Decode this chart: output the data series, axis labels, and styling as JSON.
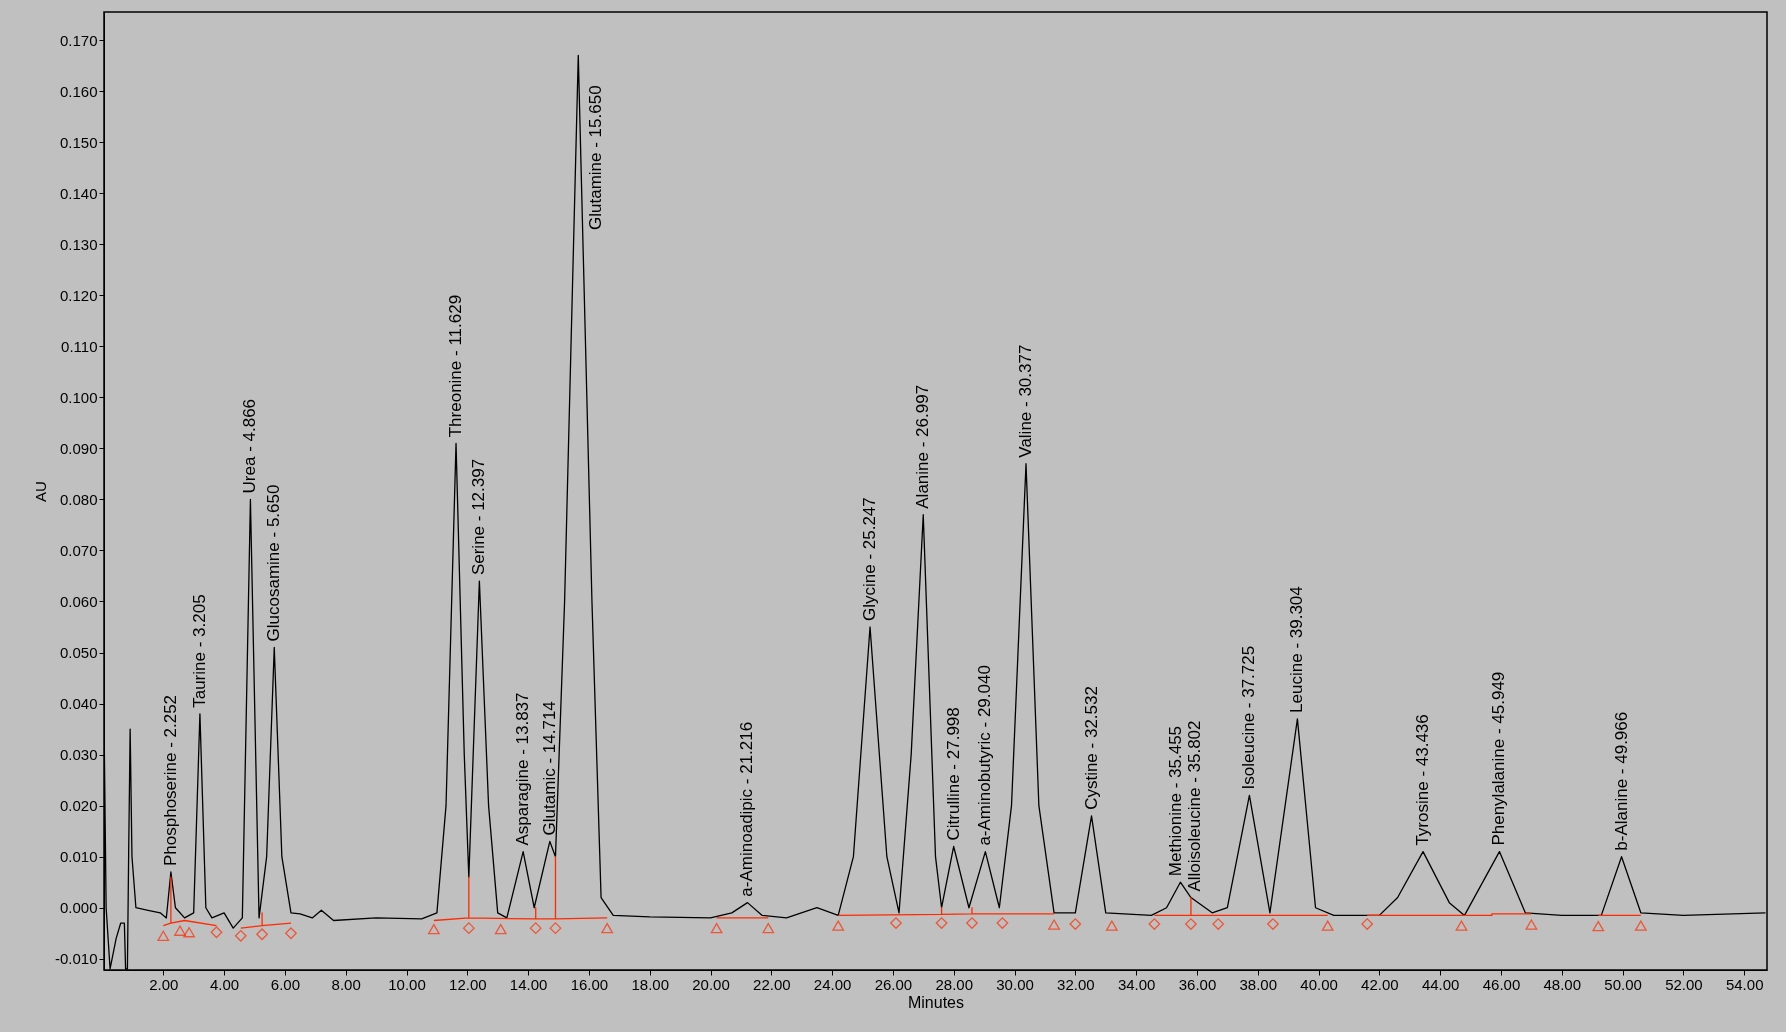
{
  "chart_data": {
    "type": "line",
    "xlabel": "Minutes",
    "ylabel": "AU",
    "xlim": [
      0.05,
      54.75
    ],
    "ylim": [
      -0.0122,
      0.1755
    ],
    "grid": false,
    "xticks": [
      {
        "value": 2,
        "label": "2.00"
      },
      {
        "value": 4,
        "label": "4.00"
      },
      {
        "value": 6,
        "label": "6.00"
      },
      {
        "value": 8,
        "label": "8.00"
      },
      {
        "value": 10,
        "label": "10.00"
      },
      {
        "value": 12,
        "label": "12.00"
      },
      {
        "value": 14,
        "label": "14.00"
      },
      {
        "value": 16,
        "label": "16.00"
      },
      {
        "value": 18,
        "label": "18.00"
      },
      {
        "value": 20,
        "label": "20.00"
      },
      {
        "value": 22,
        "label": "22.00"
      },
      {
        "value": 24,
        "label": "24.00"
      },
      {
        "value": 26,
        "label": "26.00"
      },
      {
        "value": 28,
        "label": "28.00"
      },
      {
        "value": 30,
        "label": "30.00"
      },
      {
        "value": 32,
        "label": "32.00"
      },
      {
        "value": 34,
        "label": "34.00"
      },
      {
        "value": 36,
        "label": "36.00"
      },
      {
        "value": 38,
        "label": "38.00"
      },
      {
        "value": 40,
        "label": "40.00"
      },
      {
        "value": 42,
        "label": "42.00"
      },
      {
        "value": 44,
        "label": "44.00"
      },
      {
        "value": 46,
        "label": "46.00"
      },
      {
        "value": 48,
        "label": "48.00"
      },
      {
        "value": 50,
        "label": "50.00"
      },
      {
        "value": 52,
        "label": "52.00"
      },
      {
        "value": 54,
        "label": "54.00"
      }
    ],
    "yticks": [
      {
        "value": -0.01,
        "label": "-0.010"
      },
      {
        "value": 0,
        "label": "0.000"
      },
      {
        "value": 0.01,
        "label": "0.010"
      },
      {
        "value": 0.02,
        "label": "0.020"
      },
      {
        "value": 0.03,
        "label": "0.030"
      },
      {
        "value": 0.04,
        "label": "0.040"
      },
      {
        "value": 0.05,
        "label": "0.050"
      },
      {
        "value": 0.06,
        "label": "0.060"
      },
      {
        "value": 0.07,
        "label": "0.070"
      },
      {
        "value": 0.08,
        "label": "0.080"
      },
      {
        "value": 0.09,
        "label": "0.090"
      },
      {
        "value": 0.1,
        "label": "0.100"
      },
      {
        "value": 0.11,
        "label": "0.110"
      },
      {
        "value": 0.12,
        "label": "0.120"
      },
      {
        "value": 0.13,
        "label": "0.130"
      },
      {
        "value": 0.14,
        "label": "0.140"
      },
      {
        "value": 0.15,
        "label": "0.150"
      },
      {
        "value": 0.16,
        "label": "0.160"
      },
      {
        "value": 0.17,
        "label": "0.170"
      }
    ],
    "series": [
      {
        "color": "#000000",
        "x": [
          0.05,
          0.12,
          0.25,
          0.45,
          0.6,
          0.72,
          0.76,
          0.82,
          0.86,
          0.91,
          0.97,
          1.1,
          1.5,
          1.9,
          2.1,
          2.25,
          2.4,
          2.7,
          3.0,
          3.205,
          3.4,
          3.6,
          4.0,
          4.3,
          4.6,
          4.866,
          5.15,
          5.4,
          5.65,
          5.9,
          6.2,
          6.5,
          6.9,
          7.2,
          7.6,
          9.0,
          10.5,
          11.0,
          11.3,
          11.629,
          11.9,
          12.05,
          12.397,
          12.7,
          13.0,
          13.3,
          13.837,
          14.2,
          14.714,
          14.9,
          15.2,
          15.65,
          16.1,
          16.4,
          16.8,
          18.0,
          20.0,
          20.7,
          21.216,
          21.7,
          22.5,
          23.5,
          24.2,
          24.7,
          25.247,
          25.8,
          26.2,
          26.6,
          26.997,
          27.4,
          27.6,
          27.998,
          28.5,
          29.04,
          29.5,
          29.9,
          30.377,
          30.8,
          31.3,
          32.0,
          32.532,
          33.0,
          34.5,
          35.0,
          35.455,
          35.802,
          36.5,
          37.0,
          37.725,
          38.4,
          39.304,
          39.9,
          40.5,
          42.0,
          42.6,
          43.436,
          44.3,
          44.8,
          45.949,
          46.8,
          48.0,
          49.3,
          49.966,
          50.6,
          52.0,
          54.7
        ],
        "values": [
          0.037,
          0.0,
          -0.012,
          -0.006,
          -0.003,
          -0.003,
          -0.012,
          -0.012,
          0.01,
          0.035,
          0.01,
          0.0,
          -0.0005,
          -0.001,
          -0.002,
          0.007,
          0.0,
          -0.002,
          -0.001,
          0.038,
          0.0,
          -0.002,
          -0.001,
          -0.004,
          -0.002,
          0.08,
          -0.002,
          0.01,
          0.051,
          0.01,
          -0.001,
          -0.0012,
          -0.002,
          -0.0005,
          -0.0025,
          -0.002,
          -0.0022,
          -0.001,
          0.02,
          0.091,
          0.03,
          0.006,
          0.064,
          0.02,
          -0.001,
          -0.002,
          0.011,
          0.0,
          0.013,
          0.01,
          0.06,
          0.167,
          0.06,
          0.002,
          -0.0015,
          -0.0018,
          -0.002,
          -0.001,
          0.001,
          -0.0015,
          -0.002,
          0.0,
          -0.0015,
          0.01,
          0.055,
          0.01,
          -0.001,
          0.03,
          0.077,
          0.01,
          0.0,
          0.012,
          0.0,
          0.011,
          0.0,
          0.02,
          0.087,
          0.02,
          -0.001,
          -0.001,
          0.018,
          -0.001,
          -0.0015,
          0.0,
          0.005,
          0.002,
          -0.001,
          0.0,
          0.022,
          -0.001,
          0.037,
          0.0,
          -0.0015,
          -0.0015,
          0.002,
          0.011,
          0.001,
          -0.0015,
          0.011,
          -0.001,
          -0.0015,
          -0.0015,
          0.01,
          -0.001,
          -0.0015,
          -0.001
        ]
      },
      {
        "type": "line",
        "color": "#ff2a00",
        "x": [
          2.0,
          2.25,
          2.25,
          2.25,
          2.7,
          3.75,
          3.9,
          4.55,
          5.25,
          5.25,
          5.25,
          6.2,
          6.3,
          10.9,
          12.05,
          12.05,
          12.05,
          14.25,
          14.25,
          14.25,
          14.9,
          14.9,
          14.9,
          16.6,
          16.7,
          20.2,
          21.9,
          22.0,
          24.2,
          27.6,
          27.6,
          27.6,
          28.6,
          28.6,
          28.6,
          31.3,
          31.4,
          34.6,
          35.802,
          35.802,
          35.802,
          40.3,
          40.4,
          41.6,
          45.7,
          45.7,
          47.0,
          47.1,
          49.2,
          50.6
        ],
        "values": [
          -0.0035,
          -0.003,
          0.006,
          -0.003,
          -0.0025,
          -0.0035,
          null,
          -0.004,
          -0.0035,
          -0.001,
          -0.0035,
          -0.003,
          null,
          -0.0025,
          -0.002,
          0.006,
          -0.002,
          -0.0022,
          0.0,
          -0.0022,
          -0.0022,
          0.01,
          -0.0022,
          -0.002,
          null,
          -0.002,
          -0.002,
          null,
          -0.0015,
          -0.0013,
          0.0,
          -0.0013,
          -0.0012,
          0.0,
          -0.0012,
          -0.0012,
          null,
          -0.0015,
          -0.0015,
          0.002,
          -0.0015,
          -0.0015,
          null,
          -0.0015,
          -0.0015,
          -0.0012,
          -0.0012,
          null,
          -0.0015,
          -0.0015
        ]
      },
      {
        "type": "scatter",
        "marker": "triangle",
        "color": "#ff2a00",
        "x": [
          2.0,
          2.55,
          2.85,
          10.9,
          13.1,
          16.6,
          20.2,
          21.9,
          24.2,
          31.3,
          33.2,
          40.3,
          44.7,
          47.0,
          49.2,
          50.6
        ],
        "values": [
          -0.0055,
          -0.0045,
          -0.0048,
          -0.0042,
          -0.0042,
          -0.004,
          -0.004,
          -0.004,
          -0.0035,
          -0.0033,
          -0.0035,
          -0.0035,
          -0.0035,
          -0.0033,
          -0.0036,
          -0.0035
        ]
      },
      {
        "type": "scatter",
        "marker": "diamond",
        "color": "#ff2a00",
        "x": [
          3.75,
          4.55,
          5.25,
          6.2,
          12.05,
          14.25,
          14.9,
          26.1,
          27.6,
          28.6,
          29.6,
          32.0,
          34.6,
          35.802,
          36.7,
          38.5,
          41.6
        ],
        "values": [
          -0.0048,
          -0.0055,
          -0.0052,
          -0.005,
          -0.004,
          -0.004,
          -0.004,
          -0.003,
          -0.003,
          -0.003,
          -0.003,
          -0.0032,
          -0.0032,
          -0.0032,
          -0.0032,
          -0.0032,
          -0.0032
        ]
      }
    ],
    "annotations": [
      {
        "text": "Phosphoserine - 2.252",
        "x": 2.252,
        "y": 0.007
      },
      {
        "text": "Taurine - 3.205",
        "x": 3.205,
        "y": 0.038
      },
      {
        "text": "Urea - 4.866",
        "x": 4.866,
        "y": 0.08
      },
      {
        "text": "Glucosamine - 5.650",
        "x": 5.65,
        "y": 0.051
      },
      {
        "text": "Threonine - 11.629",
        "x": 11.629,
        "y": 0.091
      },
      {
        "text": "Serine - 12.397",
        "x": 12.397,
        "y": 0.064
      },
      {
        "text": "Asparagine - 13.837",
        "x": 13.837,
        "y": 0.011
      },
      {
        "text": "Glutamic - 14.714",
        "x": 14.714,
        "y": 0.013
      },
      {
        "text": "Glutamine - 15.650",
        "x": 15.65,
        "y": 0.167
      },
      {
        "text": "a-Aminoadipic - 21.216",
        "x": 21.216,
        "y": 0.001
      },
      {
        "text": "Glycine - 25.247",
        "x": 25.247,
        "y": 0.055
      },
      {
        "text": "Alanine - 26.997",
        "x": 26.997,
        "y": 0.077
      },
      {
        "text": "Citrulline - 27.998",
        "x": 27.998,
        "y": 0.012
      },
      {
        "text": "a-Aminobutyric - 29.040",
        "x": 29.04,
        "y": 0.011
      },
      {
        "text": "Valine - 30.377",
        "x": 30.377,
        "y": 0.087
      },
      {
        "text": "Cystine - 32.532",
        "x": 32.532,
        "y": 0.018
      },
      {
        "text": "Methionine - 35.455",
        "x": 35.455,
        "y": 0.005
      },
      {
        "text": "Alloisoleucine - 35.802",
        "x": 35.802,
        "y": 0.002
      },
      {
        "text": "Isoleucine - 37.725",
        "x": 37.725,
        "y": 0.022
      },
      {
        "text": "Leucine - 39.304",
        "x": 39.304,
        "y": 0.037
      },
      {
        "text": "Tyrosine - 43.436",
        "x": 43.436,
        "y": 0.011
      },
      {
        "text": "Phenylalanine - 45.949",
        "x": 45.949,
        "y": 0.011
      },
      {
        "text": "b-Alanine - 49.966",
        "x": 49.966,
        "y": 0.01
      }
    ]
  }
}
